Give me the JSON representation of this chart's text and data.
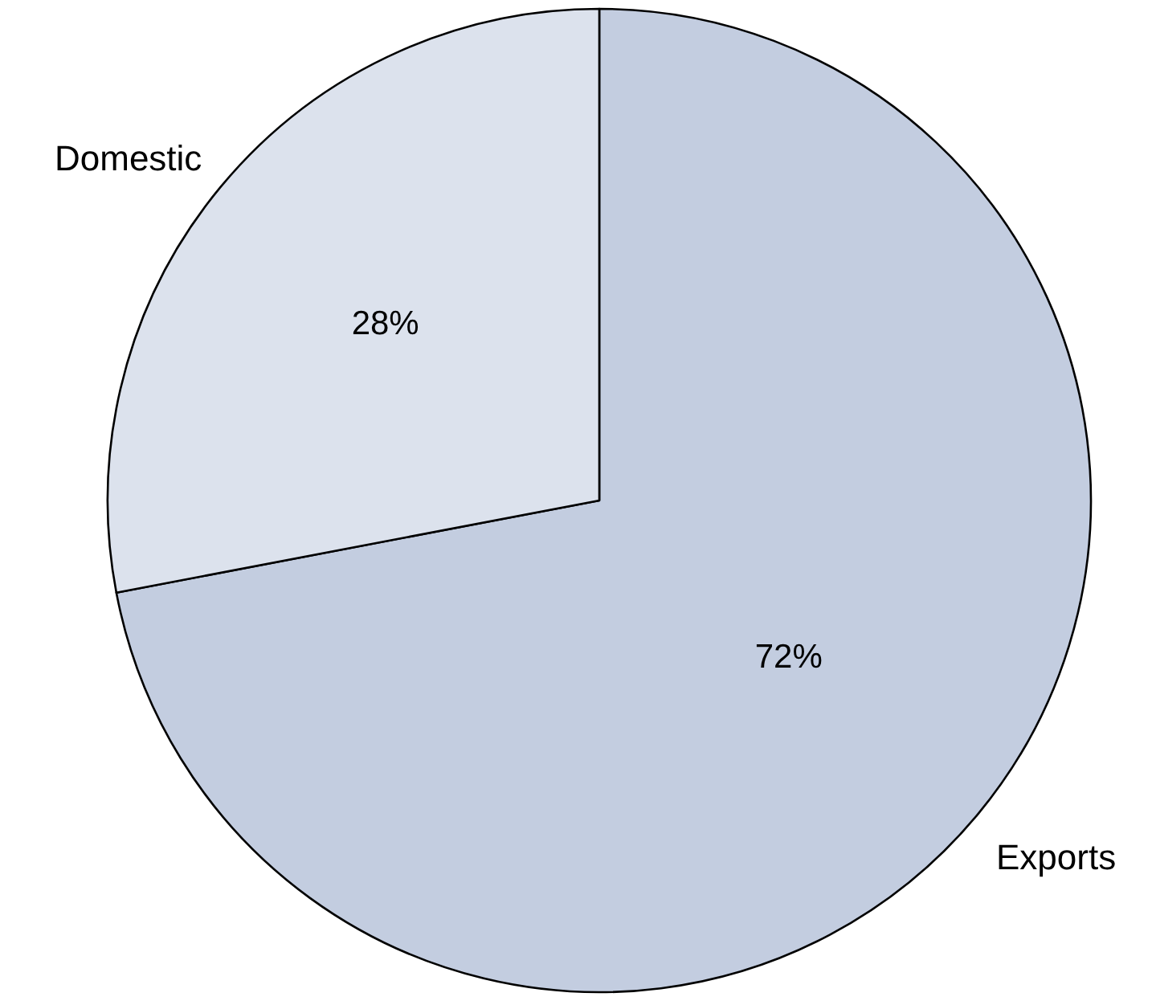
{
  "chart_data": {
    "type": "pie",
    "categories": [
      "Exports",
      "Domestic"
    ],
    "values": [
      72,
      28
    ],
    "colors": [
      "#c3cde0",
      "#dce2ed"
    ],
    "value_labels": [
      "72%",
      "28%"
    ]
  }
}
